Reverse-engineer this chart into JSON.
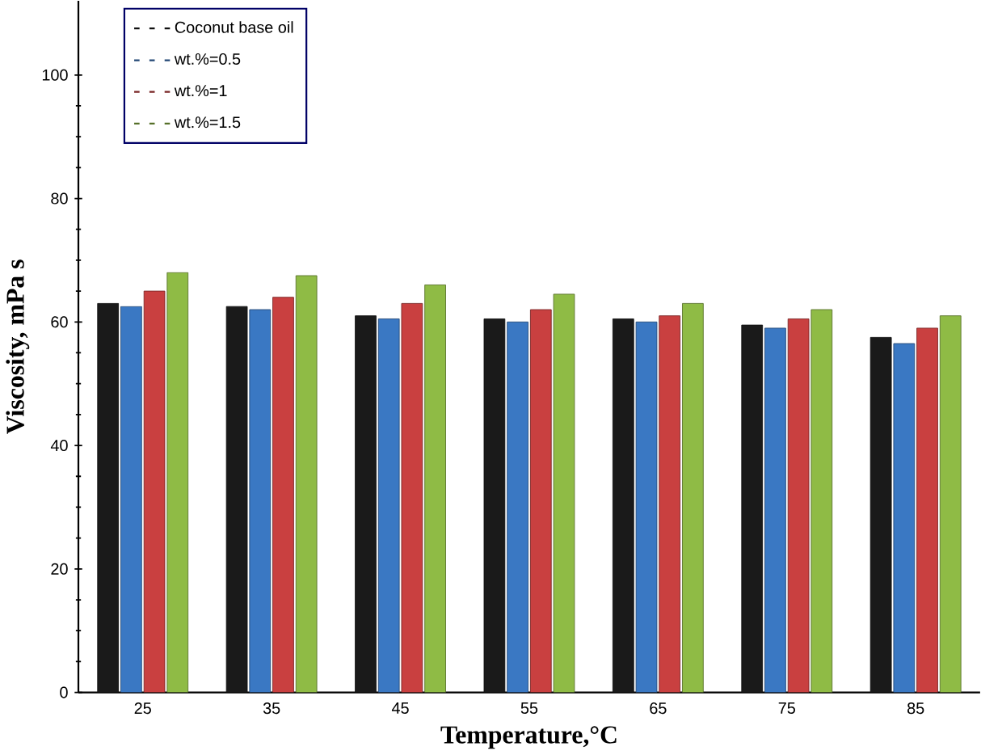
{
  "chart_data": {
    "type": "bar",
    "xlabel": "Temperature,°C",
    "ylabel": "Viscosity, mPa s",
    "categories": [
      "25",
      "35",
      "45",
      "55",
      "65",
      "75",
      "85"
    ],
    "series": [
      {
        "name": "Coconut base oil",
        "color": "#1a1a1a",
        "values": [
          63,
          62.5,
          61,
          60.5,
          60.5,
          59.5,
          57.5
        ]
      },
      {
        "name": "wt.%=0.5",
        "color": "#3a78c3",
        "values": [
          62.5,
          62,
          60.5,
          60,
          60,
          59,
          56.5
        ]
      },
      {
        "name": "wt.%=1",
        "color": "#c94040",
        "values": [
          65,
          64,
          63,
          62,
          61,
          60.5,
          59
        ]
      },
      {
        "name": "wt.%=1.5",
        "color": "#8fbb45",
        "values": [
          68,
          67.5,
          66,
          64.5,
          63,
          62,
          61
        ]
      }
    ],
    "ylim": [
      0,
      112
    ],
    "yticks": [
      0,
      20,
      40,
      60,
      80,
      100
    ],
    "legend": "top left"
  }
}
